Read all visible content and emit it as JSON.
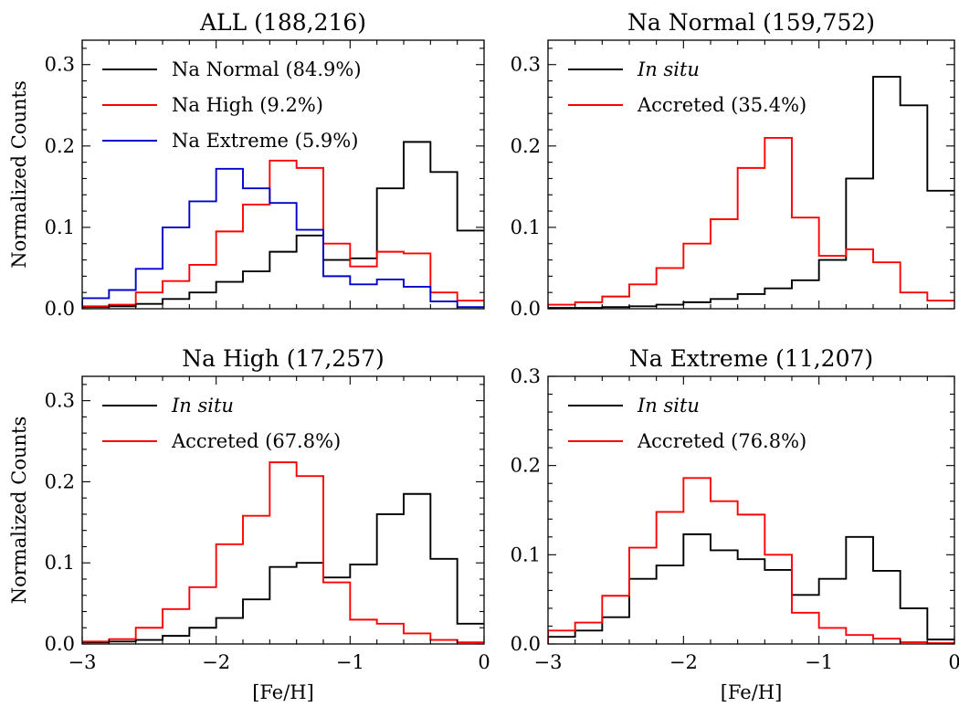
{
  "chart_data": [
    {
      "type": "line",
      "title": "ALL (188,216)",
      "xlabel": "",
      "ylabel": "Normalized Counts",
      "xlim": [
        -3,
        0
      ],
      "ylim": [
        0,
        0.33
      ],
      "xticks": [
        -3,
        -2,
        -1,
        0
      ],
      "yticks": [
        0.0,
        0.1,
        0.2,
        0.3
      ],
      "yticklabels": [
        "0.0",
        "0.1",
        "0.2",
        "0.3"
      ],
      "show_xticklabels": false,
      "legend_position": "top-left",
      "bin_edges": [
        -3.0,
        -2.8,
        -2.6,
        -2.4,
        -2.2,
        -2.0,
        -1.8,
        -1.6,
        -1.4,
        -1.2,
        -1.0,
        -0.8,
        -0.6,
        -0.4,
        -0.2,
        0.0
      ],
      "series": [
        {
          "name": "Na Normal (84.9%)",
          "color": "#000000",
          "italic": false,
          "values": [
            0.002,
            0.003,
            0.006,
            0.012,
            0.02,
            0.033,
            0.046,
            0.07,
            0.09,
            0.06,
            0.062,
            0.148,
            0.205,
            0.168,
            0.096
          ]
        },
        {
          "name": "Na High (9.2%)",
          "color": "#ff0000",
          "italic": false,
          "values": [
            0.003,
            0.005,
            0.02,
            0.034,
            0.054,
            0.095,
            0.128,
            0.182,
            0.173,
            0.08,
            0.052,
            0.07,
            0.068,
            0.02,
            0.01
          ]
        },
        {
          "name": "Na Extreme (5.9%)",
          "color": "#0000cc",
          "italic": false,
          "values": [
            0.013,
            0.023,
            0.049,
            0.1,
            0.132,
            0.172,
            0.148,
            0.13,
            0.097,
            0.04,
            0.03,
            0.036,
            0.027,
            0.009,
            0.002
          ]
        }
      ]
    },
    {
      "type": "line",
      "title": "Na Normal (159,752)",
      "xlabel": "",
      "ylabel": "",
      "xlim": [
        -3,
        0
      ],
      "ylim": [
        0,
        0.33
      ],
      "xticks": [
        -3,
        -2,
        -1,
        0
      ],
      "yticks": [
        0.0,
        0.1,
        0.2,
        0.3
      ],
      "yticklabels": [
        "0.0",
        "0.1",
        "0.2",
        "0.3"
      ],
      "show_xticklabels": false,
      "legend_position": "top-left",
      "bin_edges": [
        -3.0,
        -2.8,
        -2.6,
        -2.4,
        -2.2,
        -2.0,
        -1.8,
        -1.6,
        -1.4,
        -1.2,
        -1.0,
        -0.8,
        -0.6,
        -0.4,
        -0.2,
        0.0
      ],
      "series": [
        {
          "name": "In situ",
          "color": "#000000",
          "italic": true,
          "values": [
            0.001,
            0.001,
            0.002,
            0.003,
            0.005,
            0.008,
            0.012,
            0.018,
            0.025,
            0.035,
            0.06,
            0.16,
            0.285,
            0.25,
            0.145
          ]
        },
        {
          "name": "Accreted (35.4%)",
          "color": "#ff0000",
          "italic": false,
          "values": [
            0.005,
            0.008,
            0.015,
            0.03,
            0.05,
            0.08,
            0.11,
            0.173,
            0.21,
            0.112,
            0.065,
            0.073,
            0.057,
            0.02,
            0.01
          ]
        }
      ]
    },
    {
      "type": "line",
      "title": "Na High (17,257)",
      "xlabel": "[Fe/H]",
      "ylabel": "Normalized Counts",
      "xlim": [
        -3,
        0
      ],
      "ylim": [
        0,
        0.33
      ],
      "xticks": [
        -3,
        -2,
        -1,
        0
      ],
      "xticklabels": [
        "−3",
        "−2",
        "−1",
        "0"
      ],
      "yticks": [
        0.0,
        0.1,
        0.2,
        0.3
      ],
      "yticklabels": [
        "0.0",
        "0.1",
        "0.2",
        "0.3"
      ],
      "show_xticklabels": true,
      "legend_position": "top-left",
      "bin_edges": [
        -3.0,
        -2.8,
        -2.6,
        -2.4,
        -2.2,
        -2.0,
        -1.8,
        -1.6,
        -1.4,
        -1.2,
        -1.0,
        -0.8,
        -0.6,
        -0.4,
        -0.2,
        0.0
      ],
      "series": [
        {
          "name": "In situ",
          "color": "#000000",
          "italic": true,
          "values": [
            0.002,
            0.003,
            0.005,
            0.01,
            0.02,
            0.032,
            0.055,
            0.095,
            0.1,
            0.082,
            0.098,
            0.16,
            0.185,
            0.105,
            0.025
          ]
        },
        {
          "name": "Accreted (67.8%)",
          "color": "#ff0000",
          "italic": false,
          "values": [
            0.003,
            0.006,
            0.02,
            0.043,
            0.07,
            0.123,
            0.158,
            0.224,
            0.207,
            0.076,
            0.03,
            0.025,
            0.013,
            0.005,
            0.002
          ]
        }
      ]
    },
    {
      "type": "line",
      "title": "Na Extreme (11,207)",
      "xlabel": "[Fe/H]",
      "ylabel": "",
      "xlim": [
        -3,
        0
      ],
      "ylim": [
        0,
        0.3
      ],
      "xticks": [
        -3,
        -2,
        -1,
        0
      ],
      "xticklabels": [
        "−3",
        "−2",
        "−1",
        "0"
      ],
      "yticks": [
        0.0,
        0.1,
        0.2,
        0.3
      ],
      "yticklabels": [
        "0.0",
        "0.1",
        "0.2",
        "0.3"
      ],
      "show_xticklabels": true,
      "legend_position": "top-left",
      "bin_edges": [
        -3.0,
        -2.8,
        -2.6,
        -2.4,
        -2.2,
        -2.0,
        -1.8,
        -1.6,
        -1.4,
        -1.2,
        -1.0,
        -0.8,
        -0.6,
        -0.4,
        -0.2,
        0.0
      ],
      "series": [
        {
          "name": "In situ",
          "color": "#000000",
          "italic": true,
          "values": [
            0.008,
            0.015,
            0.03,
            0.073,
            0.088,
            0.123,
            0.105,
            0.095,
            0.083,
            0.055,
            0.073,
            0.12,
            0.082,
            0.04,
            0.005
          ]
        },
        {
          "name": "Accreted (76.8%)",
          "color": "#ff0000",
          "italic": false,
          "values": [
            0.015,
            0.024,
            0.054,
            0.108,
            0.148,
            0.186,
            0.16,
            0.145,
            0.1,
            0.035,
            0.018,
            0.01,
            0.006,
            0.002,
            0.001
          ]
        }
      ]
    }
  ]
}
